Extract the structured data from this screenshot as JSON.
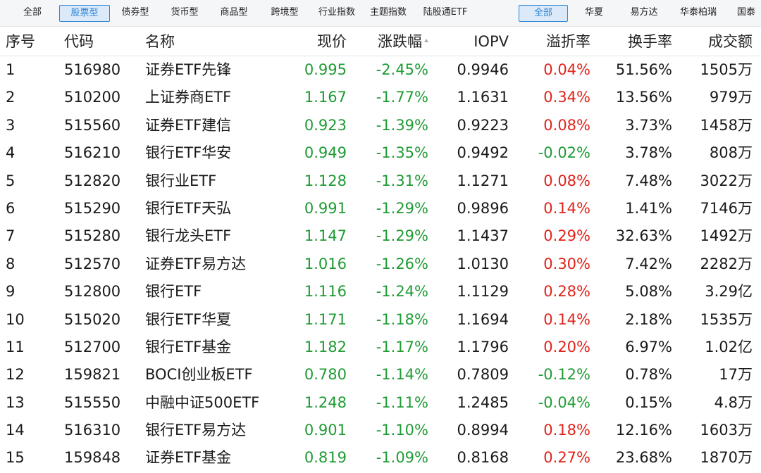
{
  "category_tabs": [
    {
      "label": "全部",
      "active": false
    },
    {
      "label": "股票型",
      "active": true
    },
    {
      "label": "债券型",
      "active": false
    },
    {
      "label": "货币型",
      "active": false
    },
    {
      "label": "商品型",
      "active": false
    },
    {
      "label": "跨境型",
      "active": false
    },
    {
      "label": "行业指数",
      "active": false
    },
    {
      "label": "主题指数",
      "active": false
    },
    {
      "label": "陆股通ETF",
      "active": false
    }
  ],
  "fund_company_tabs": [
    {
      "label": "全部",
      "active": true
    },
    {
      "label": "华夏",
      "active": false
    },
    {
      "label": "易方达",
      "active": false
    },
    {
      "label": "华泰柏瑞",
      "active": false
    },
    {
      "label": "国泰",
      "active": false
    }
  ],
  "columns": {
    "index": "序号",
    "code": "代码",
    "name": "名称",
    "price": "现价",
    "change": "涨跌幅",
    "iopv": "IOPV",
    "premium": "溢折率",
    "turnover": "换手率",
    "volume": "成交额"
  },
  "colors": {
    "down": "#1f9b34",
    "up": "#e0231b",
    "accent": "#2d86d8"
  },
  "rows": [
    {
      "index": "1",
      "code": "516980",
      "name": "证券ETF先锋",
      "price": "0.995",
      "change": "-2.45%",
      "iopv": "0.9946",
      "premium": "0.04%",
      "turnover": "51.56%",
      "volume": "1505万"
    },
    {
      "index": "2",
      "code": "510200",
      "name": "上证券商ETF",
      "price": "1.167",
      "change": "-1.77%",
      "iopv": "1.1631",
      "premium": "0.34%",
      "turnover": "13.56%",
      "volume": "979万"
    },
    {
      "index": "3",
      "code": "515560",
      "name": "证券ETF建信",
      "price": "0.923",
      "change": "-1.39%",
      "iopv": "0.9223",
      "premium": "0.08%",
      "turnover": "3.73%",
      "volume": "1458万"
    },
    {
      "index": "4",
      "code": "516210",
      "name": "银行ETF华安",
      "price": "0.949",
      "change": "-1.35%",
      "iopv": "0.9492",
      "premium": "-0.02%",
      "turnover": "3.78%",
      "volume": "808万"
    },
    {
      "index": "5",
      "code": "512820",
      "name": "银行业ETF",
      "price": "1.128",
      "change": "-1.31%",
      "iopv": "1.1271",
      "premium": "0.08%",
      "turnover": "7.48%",
      "volume": "3022万"
    },
    {
      "index": "6",
      "code": "515290",
      "name": "银行ETF天弘",
      "price": "0.991",
      "change": "-1.29%",
      "iopv": "0.9896",
      "premium": "0.14%",
      "turnover": "1.41%",
      "volume": "7146万"
    },
    {
      "index": "7",
      "code": "515280",
      "name": "银行龙头ETF",
      "price": "1.147",
      "change": "-1.29%",
      "iopv": "1.1437",
      "premium": "0.29%",
      "turnover": "32.63%",
      "volume": "1492万"
    },
    {
      "index": "8",
      "code": "512570",
      "name": "证券ETF易方达",
      "price": "1.016",
      "change": "-1.26%",
      "iopv": "1.0130",
      "premium": "0.30%",
      "turnover": "7.42%",
      "volume": "2282万"
    },
    {
      "index": "9",
      "code": "512800",
      "name": "银行ETF",
      "price": "1.116",
      "change": "-1.24%",
      "iopv": "1.1129",
      "premium": "0.28%",
      "turnover": "5.08%",
      "volume": "3.29亿"
    },
    {
      "index": "10",
      "code": "515020",
      "name": "银行ETF华夏",
      "price": "1.171",
      "change": "-1.18%",
      "iopv": "1.1694",
      "premium": "0.14%",
      "turnover": "2.18%",
      "volume": "1535万"
    },
    {
      "index": "11",
      "code": "512700",
      "name": "银行ETF基金",
      "price": "1.182",
      "change": "-1.17%",
      "iopv": "1.1796",
      "premium": "0.20%",
      "turnover": "6.97%",
      "volume": "1.02亿"
    },
    {
      "index": "12",
      "code": "159821",
      "name": "BOCI创业板ETF",
      "price": "0.780",
      "change": "-1.14%",
      "iopv": "0.7809",
      "premium": "-0.12%",
      "turnover": "0.78%",
      "volume": "17万"
    },
    {
      "index": "13",
      "code": "515550",
      "name": "中融中证500ETF",
      "price": "1.248",
      "change": "-1.11%",
      "iopv": "1.2485",
      "premium": "-0.04%",
      "turnover": "0.15%",
      "volume": "4.8万"
    },
    {
      "index": "14",
      "code": "516310",
      "name": "银行ETF易方达",
      "price": "0.901",
      "change": "-1.10%",
      "iopv": "0.8994",
      "premium": "0.18%",
      "turnover": "12.16%",
      "volume": "1603万"
    },
    {
      "index": "15",
      "code": "159848",
      "name": "证券ETF基金",
      "price": "0.819",
      "change": "-1.09%",
      "iopv": "0.8168",
      "premium": "0.27%",
      "turnover": "23.68%",
      "volume": "1870万"
    }
  ]
}
